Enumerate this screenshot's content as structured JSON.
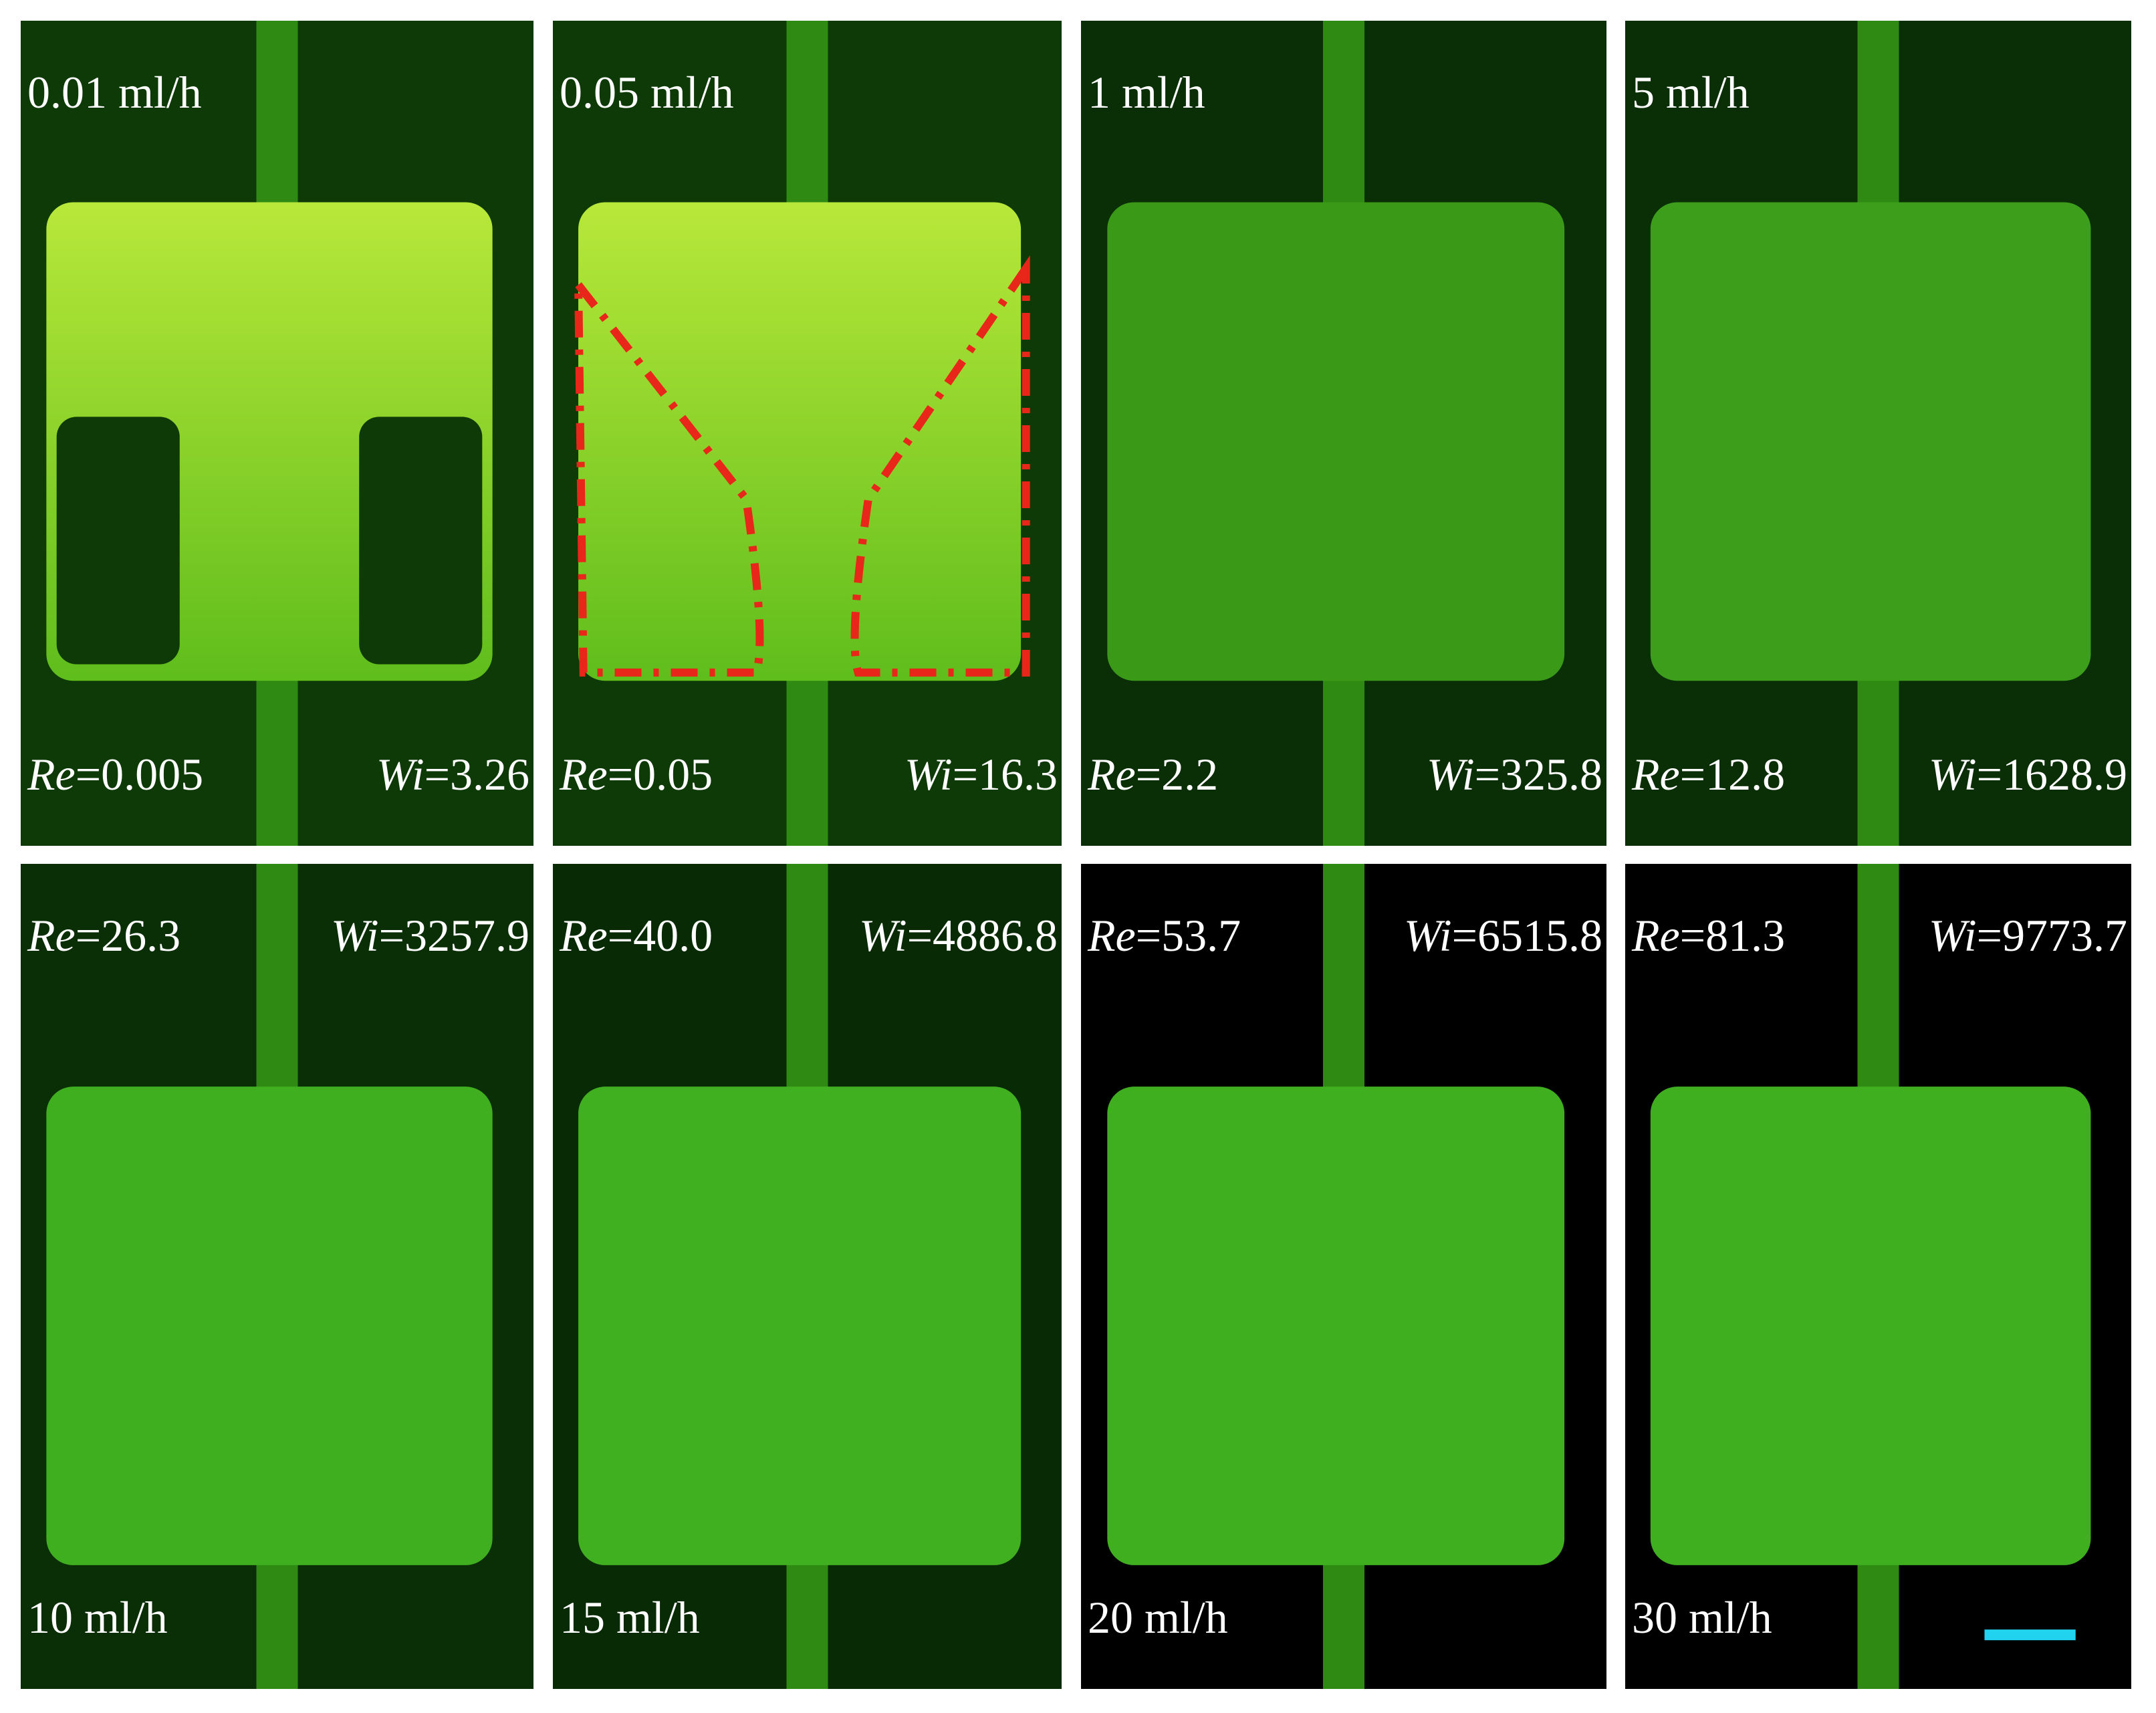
{
  "panels": [
    {
      "flow_rate": "0.01 ml/h",
      "re": {
        "symbol": "Re",
        "value": "=0.005"
      },
      "wi": {
        "symbol": "Wi",
        "value": "=3.26"
      }
    },
    {
      "flow_rate": "0.05 ml/h",
      "re": {
        "symbol": "Re",
        "value": "=0.05"
      },
      "wi": {
        "symbol": "Wi",
        "value": "=16.3"
      }
    },
    {
      "flow_rate": "1 ml/h",
      "re": {
        "symbol": "Re",
        "value": "=2.2"
      },
      "wi": {
        "symbol": "Wi",
        "value": "=325.8"
      }
    },
    {
      "flow_rate": "5 ml/h",
      "re": {
        "symbol": "Re",
        "value": "=12.8"
      },
      "wi": {
        "symbol": "Wi",
        "value": "=1628.9"
      }
    },
    {
      "flow_rate": "10 ml/h",
      "re": {
        "symbol": "Re",
        "value": "=26.3"
      },
      "wi": {
        "symbol": "Wi",
        "value": "=3257.9"
      }
    },
    {
      "flow_rate": "15 ml/h",
      "re": {
        "symbol": "Re",
        "value": "=40.0"
      },
      "wi": {
        "symbol": "Wi",
        "value": "=4886.8"
      }
    },
    {
      "flow_rate": "20 ml/h",
      "re": {
        "symbol": "Re",
        "value": "=53.7"
      },
      "wi": {
        "symbol": "Wi",
        "value": "=6515.8"
      }
    },
    {
      "flow_rate": "30 ml/h",
      "re": {
        "symbol": "Re",
        "value": "=81.3"
      },
      "wi": {
        "symbol": "Wi",
        "value": "=9773.7"
      }
    }
  ]
}
